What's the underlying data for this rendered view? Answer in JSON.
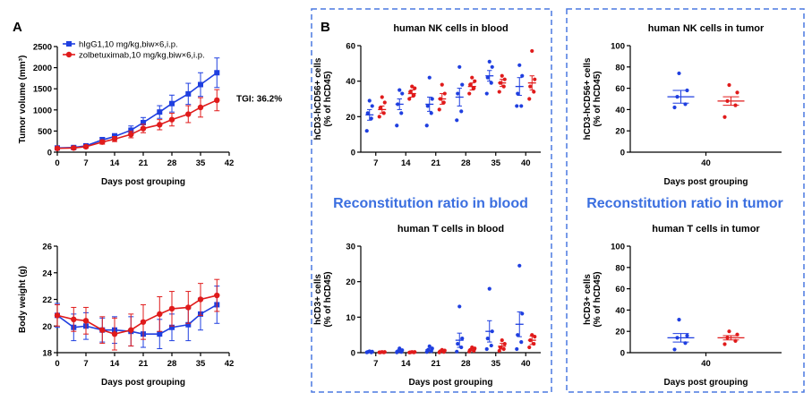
{
  "panels": {
    "a": "A",
    "b": "B",
    "recon_blood": "Reconstitution ratio in blood",
    "recon_tumor": "Reconstitution ratio in tumor"
  },
  "colors": {
    "igg": "#1f3fe0",
    "zol": "#e01b1b",
    "box": "#4a78e0",
    "text_accent": "#3b6fe0"
  },
  "chart_data": [
    {
      "id": "tumor",
      "type": "line",
      "title": "",
      "xlabel": "Days post grouping",
      "ylabel": "Tumor volume (mm³)",
      "xlim": [
        0,
        42
      ],
      "ylim": [
        0,
        2500
      ],
      "xticks": [
        0,
        7,
        14,
        21,
        28,
        35,
        42
      ],
      "yticks": [
        0,
        500,
        1000,
        1500,
        2000,
        2500
      ],
      "annotation": "TGI: 36.2%",
      "legend_position": "top-left",
      "series": [
        {
          "name": "hIgG1,10 mg/kg,biw×6,i.p.",
          "color": "#1f3fe0",
          "marker": "square",
          "x": [
            0,
            4,
            7,
            11,
            14,
            18,
            21,
            25,
            28,
            32,
            35,
            39
          ],
          "y": [
            100,
            110,
            150,
            290,
            370,
            520,
            700,
            950,
            1150,
            1380,
            1600,
            1880
          ],
          "err": [
            30,
            30,
            40,
            60,
            70,
            100,
            120,
            150,
            200,
            250,
            280,
            350
          ]
        },
        {
          "name": "zolbetuximab,10 mg/kg,biw×6,i.p.",
          "color": "#e01b1b",
          "marker": "circle",
          "x": [
            0,
            4,
            7,
            11,
            14,
            18,
            21,
            25,
            28,
            32,
            35,
            39
          ],
          "y": [
            90,
            100,
            130,
            240,
            310,
            420,
            560,
            650,
            770,
            900,
            1060,
            1230
          ],
          "err": [
            30,
            30,
            30,
            50,
            60,
            80,
            100,
            120,
            150,
            200,
            230,
            250
          ]
        }
      ]
    },
    {
      "id": "weight",
      "type": "line",
      "title": "",
      "xlabel": "Days post grouping",
      "ylabel": "Body weight (g)",
      "xlim": [
        0,
        42
      ],
      "ylim": [
        18,
        26
      ],
      "xticks": [
        0,
        7,
        14,
        21,
        28,
        35,
        42
      ],
      "yticks": [
        18,
        20,
        22,
        24,
        26
      ],
      "series": [
        {
          "name": "hIgG1",
          "color": "#1f3fe0",
          "marker": "square",
          "x": [
            0,
            4,
            7,
            11,
            14,
            18,
            21,
            25,
            28,
            32,
            35,
            39
          ],
          "y": [
            20.8,
            19.9,
            20.0,
            19.7,
            19.7,
            19.6,
            19.4,
            19.4,
            19.9,
            20.1,
            20.9,
            21.6
          ],
          "err": [
            0.9,
            1.0,
            1.0,
            0.9,
            1.0,
            1.1,
            1.0,
            1.1,
            1.0,
            1.2,
            1.2,
            1.4
          ]
        },
        {
          "name": "zolbetuximab",
          "color": "#e01b1b",
          "marker": "circle",
          "x": [
            0,
            4,
            7,
            11,
            14,
            18,
            21,
            25,
            28,
            32,
            35,
            39
          ],
          "y": [
            20.8,
            20.5,
            20.4,
            19.7,
            19.4,
            19.7,
            20.3,
            20.9,
            21.3,
            21.4,
            22.0,
            22.3
          ],
          "err": [
            0.8,
            0.9,
            1.0,
            1.0,
            1.2,
            1.2,
            1.3,
            1.3,
            1.3,
            1.2,
            1.2,
            1.2
          ]
        }
      ]
    },
    {
      "id": "nk_blood",
      "type": "scatter",
      "title": "human NK cells in blood",
      "xlabel": "",
      "ylabel": "hCD3-hCD56+ cells\n(% of hCD45)",
      "ylim": [
        0,
        60
      ],
      "yticks": [
        0,
        20,
        40,
        60
      ],
      "categories": [
        "7",
        "14",
        "21",
        "28",
        "35",
        "40"
      ],
      "series": [
        {
          "name": "hIgG1",
          "color": "#1f3fe0",
          "mean": [
            21,
            27,
            27,
            31,
            43,
            37
          ],
          "sem": [
            3,
            3,
            4,
            5,
            3,
            5
          ],
          "points": [
            [
              12,
              19,
              22,
              26,
              29
            ],
            [
              15,
              22,
              27,
              33,
              35
            ],
            [
              15,
              22,
              26,
              30,
              42
            ],
            [
              18,
              23,
              33,
              38,
              48
            ],
            [
              33,
              39,
              42,
              48,
              51
            ],
            [
              26,
              26,
              33,
              43,
              49
            ]
          ]
        },
        {
          "name": "zolbetuximab",
          "color": "#e01b1b",
          "mean": [
            24,
            33,
            30,
            37,
            39,
            39
          ],
          "sem": [
            2,
            2,
            3,
            2,
            2,
            4
          ],
          "points": [
            [
              20,
              22,
              25,
              28,
              31
            ],
            [
              30,
              32,
              34,
              36,
              37
            ],
            [
              24,
              28,
              30,
              33,
              38
            ],
            [
              33,
              36,
              38,
              40,
              42
            ],
            [
              34,
              37,
              39,
              41,
              43
            ],
            [
              30,
              34,
              37,
              41,
              57
            ]
          ]
        }
      ]
    },
    {
      "id": "t_blood",
      "type": "scatter",
      "title": "human T cells in blood",
      "xlabel": "Days post grouping",
      "ylabel": "hCD3+ cells\n(% of hCD45)",
      "ylim": [
        0,
        30
      ],
      "yticks": [
        0,
        10,
        20,
        30
      ],
      "categories": [
        "7",
        "14",
        "21",
        "28",
        "35",
        "40"
      ],
      "series": [
        {
          "name": "hIgG1",
          "color": "#1f3fe0",
          "mean": [
            0.2,
            0.5,
            0.8,
            3.5,
            6,
            8
          ],
          "sem": [
            0.1,
            0.3,
            0.4,
            2,
            3,
            3.5
          ],
          "points": [
            [
              0.1,
              0.1,
              0.2,
              0.3,
              0.4
            ],
            [
              0.1,
              0.2,
              0.4,
              0.7,
              1.2
            ],
            [
              0.2,
              0.4,
              0.7,
              1.2,
              1.8
            ],
            [
              0.3,
              1.5,
              2.5,
              4,
              13
            ],
            [
              1,
              2,
              4,
              6,
              18
            ],
            [
              1,
              3,
              5,
              11,
              24.5
            ]
          ]
        },
        {
          "name": "zolbetuximab",
          "color": "#e01b1b",
          "mean": [
            0.1,
            0.1,
            0.4,
            0.8,
            1.8,
            3.5
          ],
          "sem": [
            0.05,
            0.05,
            0.2,
            0.3,
            0.8,
            1.2
          ],
          "points": [
            [
              0.1,
              0.1,
              0.1,
              0.2,
              0.2
            ],
            [
              0.05,
              0.1,
              0.1,
              0.2,
              0.2
            ],
            [
              0.1,
              0.2,
              0.4,
              0.6,
              0.8
            ],
            [
              0.3,
              0.5,
              0.8,
              1.2,
              1.5
            ],
            [
              0.5,
              1,
              1.5,
              2.5,
              3.5
            ],
            [
              1.5,
              2.5,
              3.5,
              4.5,
              5
            ]
          ]
        }
      ]
    },
    {
      "id": "nk_tumor",
      "type": "scatter",
      "title": "human NK cells in tumor",
      "xlabel": "Days post grouping",
      "ylabel": "hCD3-hCD56+ cells\n(% of hCD45)",
      "ylim": [
        0,
        100
      ],
      "yticks": [
        0,
        20,
        40,
        60,
        80,
        100
      ],
      "categories": [
        "40"
      ],
      "series": [
        {
          "name": "hIgG1",
          "color": "#1f3fe0",
          "mean": [
            52
          ],
          "sem": [
            6
          ],
          "points": [
            [
              42,
              45,
              52,
              58,
              74
            ]
          ]
        },
        {
          "name": "zolbetuximab",
          "color": "#e01b1b",
          "mean": [
            48
          ],
          "sem": [
            4
          ],
          "points": [
            [
              33,
              44,
              48,
              56,
              63
            ]
          ]
        }
      ]
    },
    {
      "id": "t_tumor",
      "type": "scatter",
      "title": "human T cells in tumor",
      "xlabel": "Days post grouping",
      "ylabel": "hCD3+ cells\n(% of hCD45)",
      "ylim": [
        0,
        100
      ],
      "yticks": [
        0,
        20,
        40,
        60,
        80,
        100
      ],
      "categories": [
        "40"
      ],
      "series": [
        {
          "name": "hIgG1",
          "color": "#1f3fe0",
          "mean": [
            14
          ],
          "sem": [
            4
          ],
          "points": [
            [
              3,
              9,
              14,
              16,
              31
            ]
          ]
        },
        {
          "name": "zolbetuximab",
          "color": "#e01b1b",
          "mean": [
            14
          ],
          "sem": [
            2
          ],
          "points": [
            [
              8,
              11,
              14,
              17,
              20
            ]
          ]
        }
      ]
    }
  ]
}
